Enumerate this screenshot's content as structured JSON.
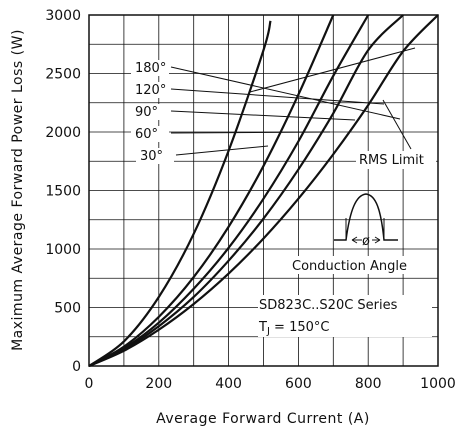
{
  "chart_data": {
    "type": "line",
    "title": "",
    "xlabel": "Average Forward Current (A)",
    "ylabel": "Maximum Average Forward Power Loss (W)",
    "xlim": [
      0,
      1000
    ],
    "ylim": [
      0,
      3000
    ],
    "xticks": [
      0,
      200,
      400,
      600,
      800,
      1000
    ],
    "yticks": [
      0,
      500,
      1000,
      1500,
      2000,
      2500,
      3000
    ],
    "grid": true,
    "series": [
      {
        "name": "180°",
        "x": [
          0,
          100,
          200,
          300,
          400,
          500,
          600,
          700,
          800,
          900,
          1000
        ],
        "y": [
          0,
          130,
          310,
          530,
          790,
          1090,
          1430,
          1810,
          2230,
          2690,
          3000
        ]
      },
      {
        "name": "120°",
        "x": [
          0,
          100,
          200,
          300,
          400,
          500,
          600,
          700,
          800,
          900
        ],
        "y": [
          0,
          140,
          340,
          590,
          900,
          1260,
          1680,
          2160,
          2700,
          3000
        ]
      },
      {
        "name": "90°",
        "x": [
          0,
          100,
          200,
          300,
          400,
          500,
          600,
          700,
          800
        ],
        "y": [
          0,
          150,
          370,
          660,
          1010,
          1430,
          1920,
          2480,
          3000
        ]
      },
      {
        "name": "60°",
        "x": [
          0,
          100,
          200,
          300,
          400,
          500,
          600,
          700
        ],
        "y": [
          0,
          165,
          420,
          760,
          1190,
          1710,
          2320,
          3000
        ]
      },
      {
        "name": "30°",
        "x": [
          0,
          100,
          200,
          300,
          400,
          500,
          520
        ],
        "y": [
          0,
          210,
          590,
          1130,
          1840,
          2700,
          2950
        ]
      }
    ],
    "annotations": {
      "rms_limit": "RMS Limit",
      "conduction_angle": "Conduction Angle",
      "phi": "ø",
      "series_name": "SD823C..S20C Series",
      "tj_label": "T",
      "tj_sub": "J",
      "tj_value": " = 150°C"
    }
  }
}
